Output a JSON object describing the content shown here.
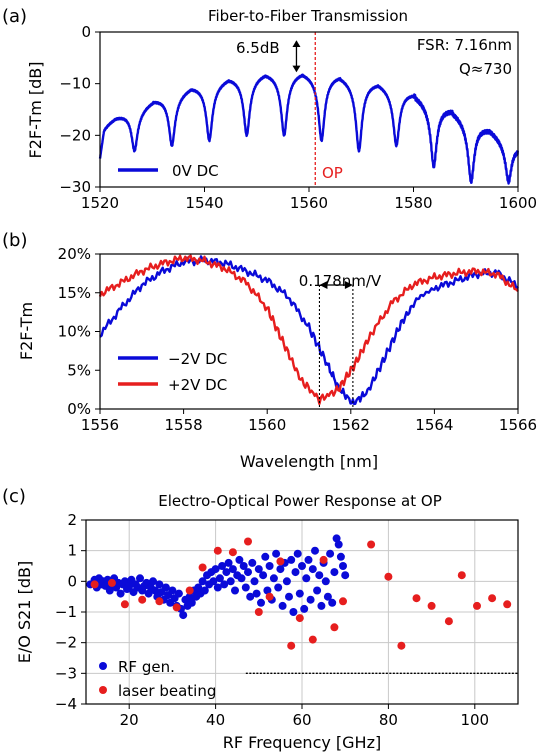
{
  "colors": {
    "blue": "#0a0ad8",
    "red": "#e61e1e",
    "grid": "#c8c8c8",
    "op_line": "#e61e1e"
  },
  "chart_data": [
    {
      "panel_label": "(a)",
      "type": "line",
      "title": "Fiber-to-Fiber Transmission",
      "xlabel": "",
      "ylabel": "F2F-Tm [dB]",
      "xlim": [
        1520,
        1600
      ],
      "ylim": [
        -30,
        0
      ],
      "xticks": [
        1520,
        1540,
        1560,
        1580,
        1600
      ],
      "yticks": [
        0,
        -10,
        -20,
        -30
      ],
      "xtick_labels": [
        "1520",
        "1540",
        "1560",
        "1580",
        "1600"
      ],
      "ytick_labels": [
        "0",
        "−10",
        "−20",
        "−30"
      ],
      "grid": false,
      "fsr_nm": 7.16,
      "first_dip_nm": 1526.6,
      "series": [
        {
          "name": "0V DC",
          "color": "#0a0ad8"
        }
      ],
      "legend_position": "bottom-left",
      "annotations": {
        "fsr": "FSR: 7.16nm",
        "q": "Q≈730",
        "extinction": "6.5dB",
        "op_label": "OP",
        "op_wavelength": 1561.2
      }
    },
    {
      "panel_label": "(b)",
      "type": "line",
      "xlabel": "Wavelength [nm]",
      "ylabel": "F2F-Tm",
      "xlim": [
        1556,
        1566
      ],
      "ylim": [
        0,
        20
      ],
      "xticks": [
        1556,
        1558,
        1560,
        1562,
        1564,
        1566
      ],
      "yticks": [
        0,
        5,
        10,
        15,
        20
      ],
      "xtick_labels": [
        "1556",
        "1558",
        "1560",
        "1562",
        "1564",
        "1566"
      ],
      "ytick_labels": [
        "0%",
        "5%",
        "10%",
        "15%",
        "20%"
      ],
      "grid": false,
      "series": [
        {
          "name": "−2V DC",
          "color": "#0a0ad8",
          "dip_nm": 1562.05,
          "points": [
            [
              1556,
              9.6
            ],
            [
              1556.5,
              13
            ],
            [
              1557,
              16
            ],
            [
              1557.5,
              17.8
            ],
            [
              1558,
              19
            ],
            [
              1558.5,
              19.2
            ],
            [
              1559,
              18.8
            ],
            [
              1559.5,
              17.8
            ],
            [
              1560,
              16.6
            ],
            [
              1560.5,
              14.5
            ],
            [
              1561,
              10.5
            ],
            [
              1561.4,
              6.2
            ],
            [
              1561.7,
              2.8
            ],
            [
              1562.05,
              0.7
            ],
            [
              1562.4,
              2.2
            ],
            [
              1562.8,
              6.5
            ],
            [
              1563.2,
              11
            ],
            [
              1563.6,
              14.3
            ],
            [
              1564,
              15.6
            ],
            [
              1564.5,
              16.5
            ],
            [
              1565,
              17.4
            ],
            [
              1565.5,
              17.6
            ],
            [
              1566,
              15.8
            ]
          ]
        },
        {
          "name": "+2V DC",
          "color": "#e61e1e",
          "dip_nm": 1561.25,
          "points": [
            [
              1556,
              14.8
            ],
            [
              1556.5,
              16.3
            ],
            [
              1557,
              17.8
            ],
            [
              1557.5,
              18.8
            ],
            [
              1558,
              19.5
            ],
            [
              1558.5,
              19.1
            ],
            [
              1559,
              18.1
            ],
            [
              1559.5,
              16.3
            ],
            [
              1560,
              13
            ],
            [
              1560.4,
              8.4
            ],
            [
              1560.8,
              3.8
            ],
            [
              1561.25,
              1.2
            ],
            [
              1561.7,
              2.5
            ],
            [
              1562.1,
              5.8
            ],
            [
              1562.5,
              9.8
            ],
            [
              1563,
              13.8
            ],
            [
              1563.5,
              16.1
            ],
            [
              1564,
              17
            ],
            [
              1564.5,
              17.5
            ],
            [
              1565,
              17.8
            ],
            [
              1565.5,
              17.4
            ],
            [
              1566,
              15.2
            ]
          ]
        }
      ],
      "legend_position": "bottom-left",
      "annotations": {
        "shift": "0.178nm/V",
        "shift_level": 16
      }
    },
    {
      "panel_label": "(c)",
      "type": "scatter",
      "title": "Electro-Optical Power Response at OP",
      "xlabel": "RF Frequency [GHz]",
      "ylabel": "E/O S21 [dB]",
      "xlim": [
        10,
        110
      ],
      "ylim": [
        -4,
        2
      ],
      "xticks": [
        20,
        40,
        60,
        80,
        100
      ],
      "yticks": [
        2,
        1,
        0,
        -1,
        -2,
        -3,
        -4
      ],
      "xtick_labels": [
        "20",
        "40",
        "60",
        "80",
        "100"
      ],
      "ytick_labels": [
        "2",
        "1",
        "0",
        "−1",
        "−2",
        "−3",
        "−4"
      ],
      "grid": true,
      "threshold_db": -3,
      "threshold_from_ghz": 47,
      "legend_position": "bottom-left",
      "series": [
        {
          "name": "RF gen.",
          "color": "#0a0ad8",
          "x": [
            11,
            12,
            12.5,
            13,
            13.5,
            14,
            14.5,
            15,
            15.5,
            16,
            16.5,
            17,
            17.5,
            18,
            18.5,
            19,
            19.5,
            20,
            20.5,
            21,
            21.5,
            22,
            22.5,
            23,
            23.5,
            24,
            24.5,
            25,
            25.5,
            26,
            26.5,
            27,
            27.5,
            28,
            28.5,
            29,
            29.5,
            30,
            30.5,
            31,
            31.5,
            32,
            32.5,
            33,
            33.5,
            34,
            34.5,
            35,
            35.5,
            36,
            36.5,
            37,
            37.5,
            38,
            38.5,
            39,
            39.5,
            40,
            40.5,
            41,
            41.5,
            42,
            42.5,
            43,
            43.5,
            44,
            44.5,
            45,
            45.5,
            46,
            46.5,
            47,
            47.5,
            48,
            48.5,
            49,
            49.5,
            50,
            50.5,
            51,
            51.5,
            52,
            52.5,
            53,
            53.5,
            54,
            54.5,
            55,
            55.5,
            56,
            56.5,
            57,
            57.5,
            58,
            58.5,
            59,
            59.5,
            60,
            60.5,
            61,
            61.5,
            62,
            62.5,
            63,
            63.5,
            64,
            64.5,
            65,
            65.5,
            66,
            66.5,
            67,
            67.5,
            68,
            68.5,
            69,
            69.5,
            70
          ],
          "values": [
            -0.1,
            0.05,
            -0.2,
            0.1,
            -0.1,
            0.0,
            -0.15,
            0.05,
            -0.3,
            -0.1,
            0.1,
            -0.2,
            -0.05,
            -0.4,
            -0.1,
            0.0,
            -0.25,
            -0.15,
            0.05,
            -0.35,
            -0.1,
            -0.2,
            0.1,
            -0.3,
            -0.15,
            -0.05,
            -0.4,
            -0.2,
            0.0,
            -0.3,
            -0.5,
            -0.1,
            -0.35,
            -0.6,
            -0.2,
            -0.45,
            -0.7,
            -0.3,
            -0.55,
            -0.8,
            -0.4,
            -0.9,
            -1.1,
            -0.6,
            -0.8,
            -0.5,
            -0.7,
            -0.3,
            -0.5,
            -0.2,
            -0.4,
            0.0,
            -0.3,
            0.2,
            -0.1,
            0.3,
            0.0,
            0.4,
            -0.2,
            0.1,
            0.5,
            -0.1,
            0.3,
            0.6,
            0.0,
            0.4,
            -0.3,
            0.2,
            0.7,
            0.1,
            0.5,
            -0.2,
            0.3,
            -0.5,
            0.6,
            0.0,
            -0.4,
            0.4,
            -0.7,
            0.2,
            0.8,
            -0.3,
            0.5,
            -0.6,
            0.1,
            0.9,
            -0.2,
            0.4,
            -0.8,
            0.6,
            0.0,
            -0.5,
            0.7,
            -1.0,
            0.3,
            0.9,
            -0.4,
            0.5,
            -0.9,
            0.1,
            0.7,
            -0.6,
            0.4,
            1.0,
            -0.3,
            0.2,
            -0.8,
            0.6,
            0.0,
            -0.5,
            0.9,
            -0.7,
            0.3,
            1.4,
            1.2,
            0.8,
            0.5,
            0.2
          ]
        },
        {
          "name": "laser beating",
          "color": "#e61e1e",
          "x": [
            12,
            16,
            19,
            23,
            27,
            31,
            34,
            37,
            40.5,
            44,
            47.5,
            50,
            52.5,
            55,
            57.5,
            59.5,
            62.5,
            65,
            67.5,
            69.5,
            76,
            80,
            83,
            86.5,
            90,
            94,
            97,
            100.5,
            104,
            107.5
          ],
          "values": [
            -0.1,
            -0.05,
            -0.75,
            -0.6,
            -0.65,
            -0.85,
            -0.3,
            0.45,
            1.0,
            0.95,
            1.3,
            -1.0,
            -0.5,
            0.65,
            -2.1,
            -1.2,
            -1.9,
            0.7,
            -1.5,
            -0.65,
            1.2,
            0.15,
            -2.1,
            -0.55,
            -0.8,
            -1.3,
            0.2,
            -0.8,
            -0.55,
            -0.75
          ]
        }
      ]
    }
  ]
}
